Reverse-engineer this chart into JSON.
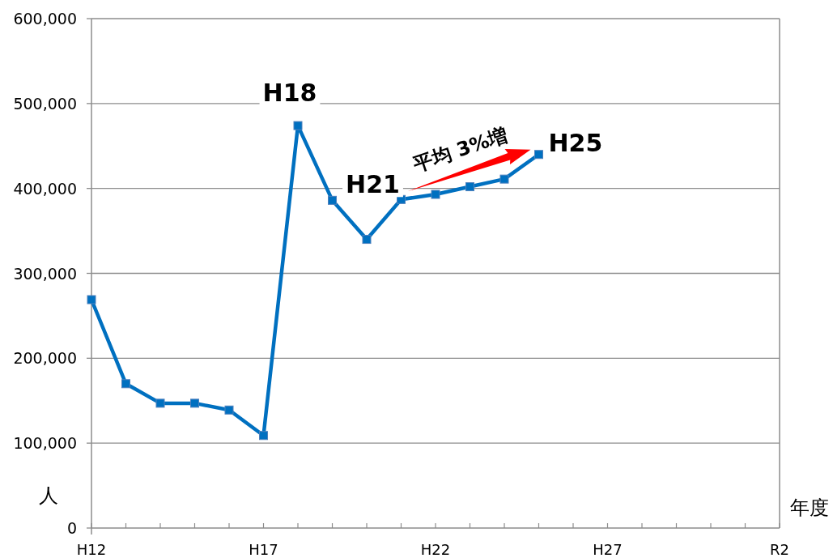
{
  "chart_data": {
    "type": "line",
    "xlabel": "年度",
    "ylabel": "人",
    "categories": [
      "H12",
      null,
      null,
      null,
      null,
      "H17",
      null,
      null,
      null,
      null,
      "H22",
      null,
      null,
      null,
      null,
      "H27",
      null,
      null,
      null,
      null,
      "R2"
    ],
    "series": [
      {
        "color": "#0070c0",
        "values": [
          269000,
          170000,
          147000,
          147000,
          139000,
          109000,
          474000,
          386000,
          340000,
          387000,
          393000,
          402000,
          411000,
          440000,
          null,
          null,
          null,
          null,
          null,
          null,
          null
        ]
      }
    ],
    "ylim": [
      0,
      600000
    ],
    "yticks": [
      {
        "value": 0,
        "label": "0"
      },
      {
        "value": 100000,
        "label": "100,000"
      },
      {
        "value": 200000,
        "label": "200,000"
      },
      {
        "value": 300000,
        "label": "300,000"
      },
      {
        "value": 400000,
        "label": "400,000"
      },
      {
        "value": 500000,
        "label": "500,000"
      },
      {
        "value": 600000,
        "label": "600,000"
      }
    ],
    "grid": "y",
    "marker": "square",
    "line_style": "solid",
    "annotations": [
      "H18",
      "H21",
      "H25",
      "平均 3%増"
    ]
  }
}
